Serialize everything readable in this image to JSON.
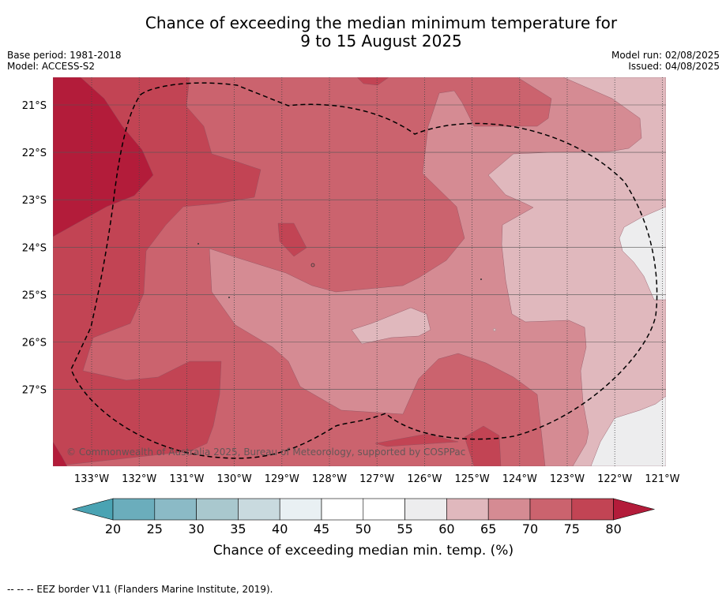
{
  "title_line1": "Chance of exceeding the median minimum temperature for",
  "title_line2": "9 to 15 August 2025",
  "meta": {
    "base_period": "Base period: 1981-2018",
    "model": "Model: ACCESS-S2",
    "model_run": "Model run: 02/08/2025",
    "issued": "Issued: 04/08/2025"
  },
  "map": {
    "lat_labels": [
      "21°S",
      "22°S",
      "23°S",
      "24°S",
      "25°S",
      "26°S",
      "27°S"
    ],
    "lon_labels": [
      "133°W",
      "132°W",
      "131°W",
      "130°W",
      "129°W",
      "128°W",
      "127°W",
      "126°W",
      "125°W",
      "124°W",
      "123°W",
      "122°W",
      "121°W"
    ],
    "copyright": "© Commonwealth of Australia 2025, Bureau of Meteorology, supported by COSPPac",
    "colors": {
      "c80": "#b31c3a",
      "c75": "#c24454",
      "c70": "#cb636e",
      "c65": "#d58b93",
      "c60": "#e0b8bd",
      "c55": "#ededee",
      "border": "#000000"
    }
  },
  "colorbar": {
    "ticks": [
      "20",
      "25",
      "30",
      "35",
      "40",
      "45",
      "50",
      "55",
      "60",
      "65",
      "70",
      "75",
      "80"
    ],
    "colors": [
      "#6badbc",
      "#8bbac6",
      "#a9c8ce",
      "#c9dadf",
      "#e9f0f3",
      "#ffffff",
      "#ffffff",
      "#ededee",
      "#e0b8bd",
      "#d58b93",
      "#cb636e",
      "#c24454"
    ],
    "under_color": "#4aa3b3",
    "over_color": "#b31c3a",
    "label": "Chance of exceeding median min. temp. (%)"
  },
  "footer": "--  --  -- EEZ border V11 (Flanders Marine Institute, 2019)."
}
